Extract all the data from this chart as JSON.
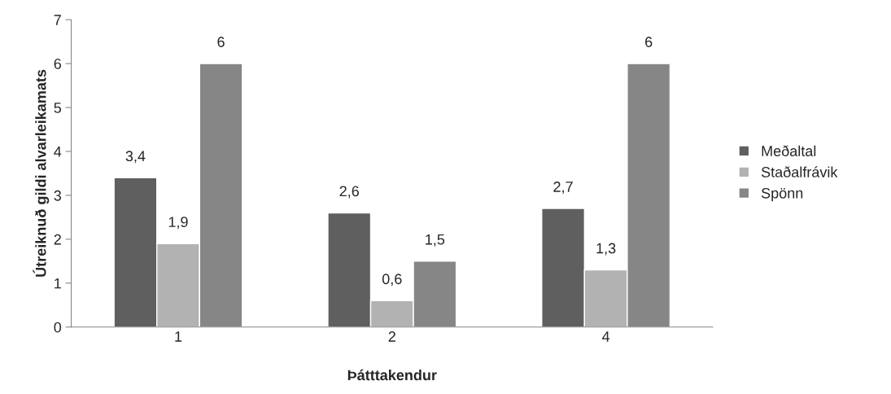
{
  "chart_data": {
    "type": "bar",
    "xlabel": "Þátttakendur",
    "ylabel": "Útreiknuð gildi alvarleikamats",
    "categories": [
      "1",
      "2",
      "4"
    ],
    "series": [
      {
        "name": "Meðaltal",
        "color": "#5f5f5f",
        "values": [
          3.4,
          2.6,
          2.7
        ],
        "value_labels": [
          "3,4",
          "2,6",
          "2,7"
        ]
      },
      {
        "name": "Staðalfrávik",
        "color": "#b2b2b2",
        "values": [
          1.9,
          0.6,
          1.3
        ],
        "value_labels": [
          "1,9",
          "0,6",
          "1,3"
        ]
      },
      {
        "name": "Spönn",
        "color": "#868686",
        "values": [
          6,
          1.5,
          6
        ],
        "value_labels": [
          "6",
          "1,5",
          "6"
        ]
      }
    ],
    "ylim": [
      0,
      7
    ],
    "yticks": [
      0,
      1,
      2,
      3,
      4,
      5,
      6,
      7
    ],
    "grid": false,
    "legend": "right"
  }
}
